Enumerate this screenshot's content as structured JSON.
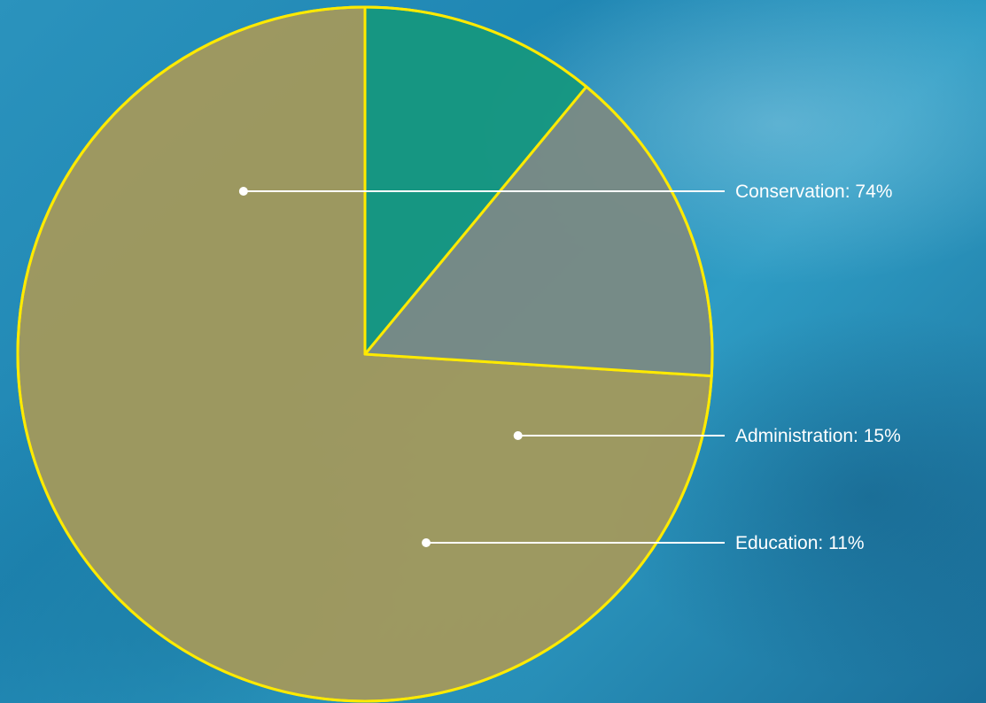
{
  "chart_data": {
    "type": "pie",
    "title": "",
    "start_angle_deg": 0,
    "slices": [
      {
        "label": "Conservation",
        "value": 74,
        "display": "Conservation: 74%",
        "color": "#a3995c"
      },
      {
        "label": "Administration",
        "value": 15,
        "display": "Administration: 15%",
        "color": "#7a8a84"
      },
      {
        "label": "Education",
        "value": 11,
        "display": "Education: 11%",
        "color": "#16977f"
      }
    ],
    "border_color": "#ffea00",
    "callout_color": "#ffffff",
    "legend": "none"
  }
}
